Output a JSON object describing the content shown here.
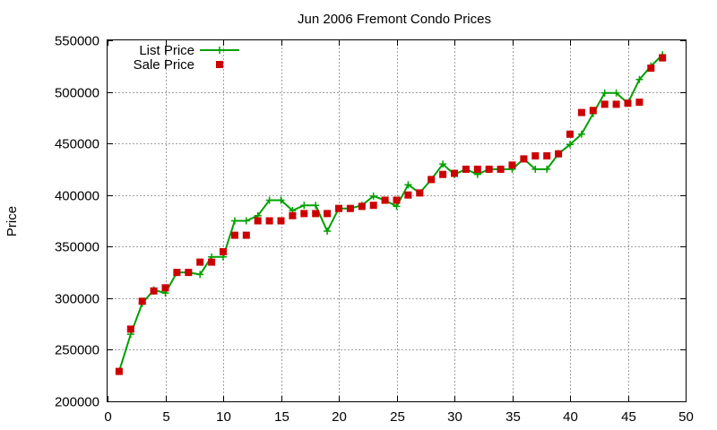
{
  "chart_data": {
    "type": "line",
    "title": "Jun 2006 Fremont Condo Prices",
    "xlabel": "",
    "ylabel": "Price",
    "xlim": [
      0,
      50
    ],
    "ylim": [
      200000,
      550000
    ],
    "x_ticks": [
      "0",
      "5",
      "10",
      "15",
      "20",
      "25",
      "30",
      "35",
      "40",
      "45",
      "50"
    ],
    "y_ticks": [
      "200000",
      "250000",
      "300000",
      "350000",
      "400000",
      "450000",
      "500000",
      "550000"
    ],
    "grid": true,
    "legend_position": "top-left",
    "series": [
      {
        "name": "List Price",
        "color": "#00a000",
        "style": "line-with-plus-markers",
        "x": [
          1,
          2,
          3,
          4,
          5,
          6,
          7,
          8,
          9,
          10,
          11,
          12,
          13,
          14,
          15,
          16,
          17,
          18,
          19,
          20,
          21,
          22,
          23,
          24,
          25,
          26,
          27,
          28,
          29,
          30,
          31,
          32,
          33,
          34,
          35,
          36,
          37,
          38,
          39,
          40,
          41,
          42,
          43,
          44,
          45,
          46,
          47,
          48
        ],
        "values": [
          229000,
          265000,
          295000,
          308000,
          305000,
          325000,
          325000,
          323000,
          340000,
          340000,
          375000,
          375000,
          380000,
          395000,
          395000,
          385000,
          390000,
          390000,
          365000,
          387000,
          387000,
          390000,
          399000,
          395000,
          389000,
          410000,
          402000,
          415000,
          430000,
          420000,
          425000,
          420000,
          425000,
          425000,
          425000,
          435000,
          425000,
          425000,
          440000,
          449000,
          459000,
          479000,
          499000,
          499000,
          489000,
          512000,
          525000,
          536000
        ]
      },
      {
        "name": "Sale Price",
        "color": "#cc0000",
        "style": "square-markers",
        "x": [
          1,
          2,
          3,
          4,
          5,
          6,
          7,
          8,
          9,
          10,
          11,
          12,
          13,
          14,
          15,
          16,
          17,
          18,
          19,
          20,
          21,
          22,
          23,
          24,
          25,
          26,
          27,
          28,
          29,
          30,
          31,
          32,
          33,
          34,
          35,
          36,
          37,
          38,
          39,
          40,
          41,
          42,
          43,
          44,
          45,
          46,
          47,
          48
        ],
        "values": [
          229000,
          270000,
          297000,
          307000,
          310000,
          325000,
          325000,
          335000,
          335000,
          345000,
          361000,
          361000,
          375000,
          375000,
          375000,
          380000,
          382000,
          382000,
          382000,
          387000,
          387000,
          389000,
          390000,
          395000,
          395000,
          400000,
          402000,
          415000,
          420000,
          421000,
          425000,
          425000,
          425000,
          425000,
          429000,
          435000,
          438000,
          438000,
          440000,
          459000,
          480000,
          482000,
          488000,
          488000,
          489000,
          490000,
          523000,
          533000
        ]
      }
    ]
  }
}
